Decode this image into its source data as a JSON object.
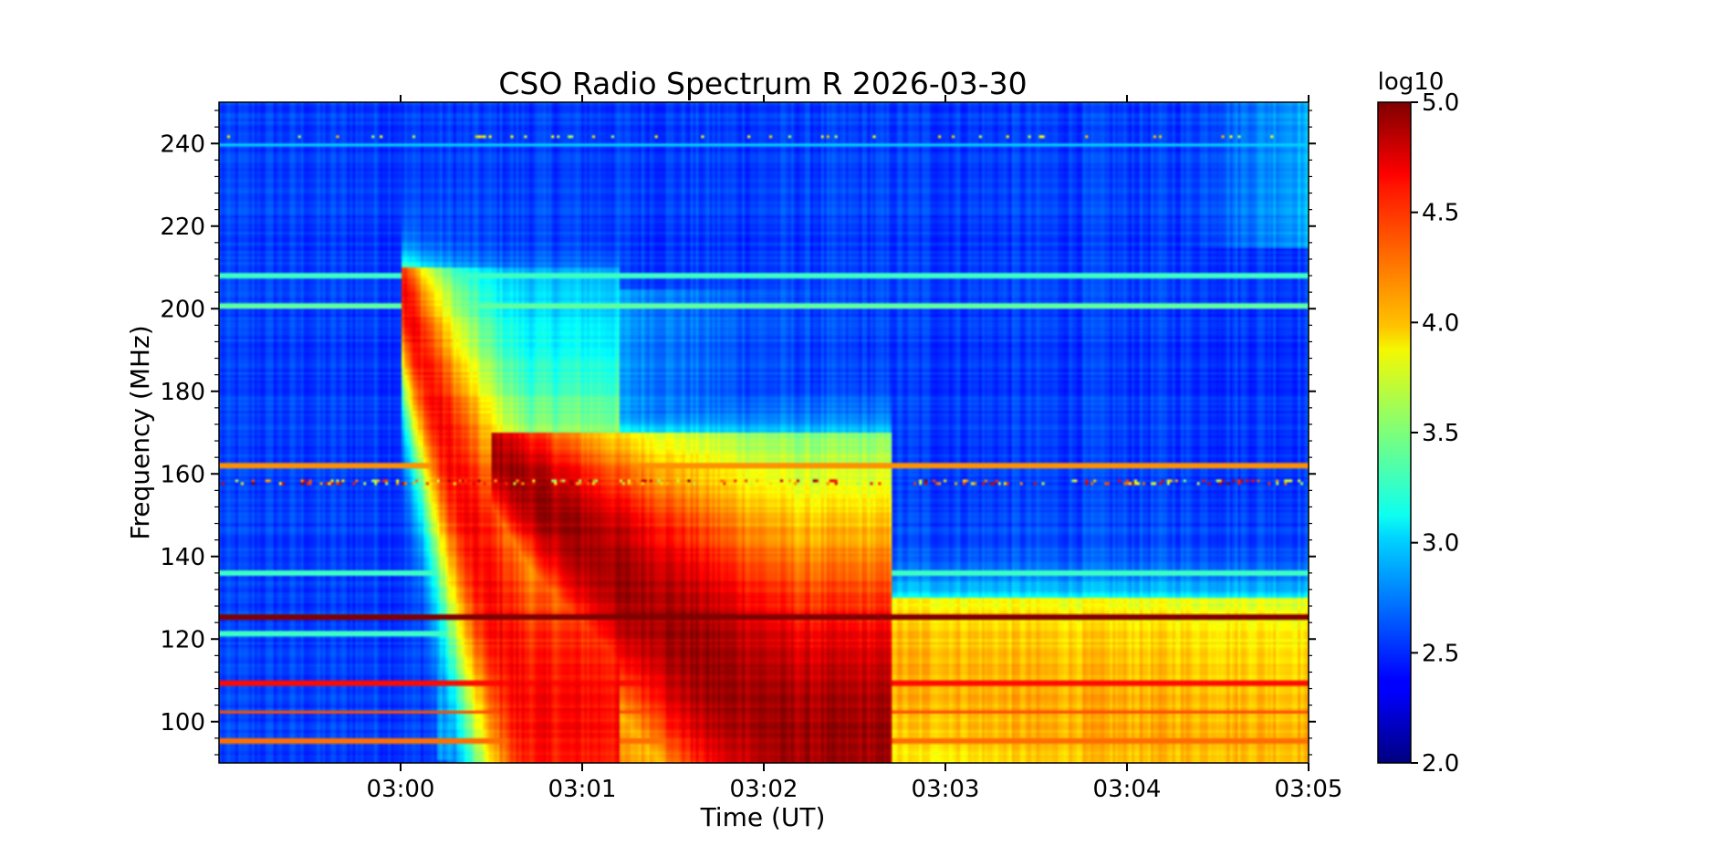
{
  "chart_data": {
    "type": "heatmap",
    "title": "CSO Radio Spectrum R 2026-03-30",
    "xlabel": "Time (UT)",
    "ylabel": "Frequency (MHz)",
    "x_tick_labels": [
      "03:00",
      "03:01",
      "03:02",
      "03:03",
      "03:04",
      "03:05"
    ],
    "x_tick_minutes": [
      1,
      2,
      3,
      4,
      5,
      6
    ],
    "xlim_minutes": [
      0,
      6
    ],
    "xlim_time": [
      "02:59",
      "03:05"
    ],
    "y_ticks": [
      100,
      120,
      140,
      160,
      180,
      200,
      220,
      240
    ],
    "ylim": [
      90,
      250
    ],
    "colormap": "jet",
    "colorbar": {
      "label": "log10",
      "ticks": [
        "2.0",
        "2.5",
        "3.0",
        "3.5",
        "4.0",
        "4.5",
        "5.0"
      ],
      "range": [
        2.0,
        5.0
      ]
    },
    "background_level": 2.55,
    "bursts": [
      {
        "description_id": "burst-1",
        "start_minute": 1.0,
        "end_minute": 1.7,
        "freq_start": 205,
        "freq_end": 100,
        "peak": 4.6
      },
      {
        "description_id": "burst-2",
        "start_minute": 1.5,
        "end_minute": 3.2,
        "freq_start": 165,
        "freq_end": 92,
        "peak": 4.9
      },
      {
        "description_id": "tail",
        "start_minute": 2.0,
        "end_minute": 6.0,
        "freq_start": 125,
        "freq_end": 92,
        "peak": 4.1
      }
    ],
    "interference_lines": [
      {
        "freq": 125,
        "level": 5.0
      },
      {
        "freq": 109,
        "level": 4.6
      },
      {
        "freq": 102,
        "level": 4.4
      },
      {
        "freq": 95,
        "level": 4.3
      },
      {
        "freq": 162,
        "level": 4.2
      },
      {
        "freq": 136,
        "level": 3.3
      },
      {
        "freq": 121,
        "level": 3.3
      },
      {
        "freq": 201,
        "level": 3.4
      },
      {
        "freq": 208,
        "level": 3.3
      },
      {
        "freq": 240,
        "level": 3.0
      }
    ],
    "grid": false
  }
}
